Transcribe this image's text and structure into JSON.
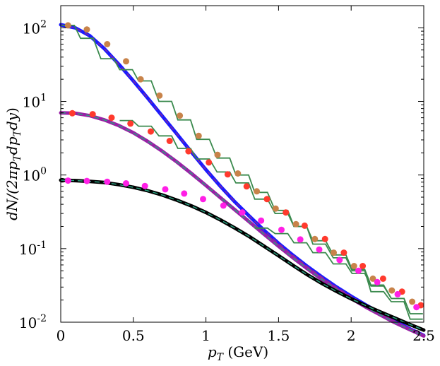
{
  "chart_data": {
    "type": "line",
    "title": "",
    "xlabel": {
      "symbol": "p",
      "sub": "T",
      "unit": " (GeV)"
    },
    "ylabel": {
      "parts": [
        {
          "t": "dN/(2π",
          "it": true
        },
        {
          "t": "p",
          "it": true
        },
        {
          "t": "T",
          "sub": true
        },
        {
          "t": "dp",
          "it": true
        },
        {
          "t": "T",
          "sub": true
        },
        {
          "t": "dy",
          "it": true
        },
        {
          "t": ")",
          "it": false
        }
      ]
    },
    "xlim": [
      0,
      2.5
    ],
    "ylim": [
      0.01,
      200
    ],
    "yscale": "log",
    "grid": false,
    "legend": "none",
    "x_ticks": [
      "0",
      "0.5",
      "1",
      "1.5",
      "2",
      "2.5"
    ],
    "x_tick_values": [
      0,
      0.5,
      1,
      1.5,
      2,
      2.5
    ],
    "y_ticks": [
      {
        "base": "10",
        "exp": "-2",
        "value": 0.01
      },
      {
        "base": "10",
        "exp": "-1",
        "value": 0.1
      },
      {
        "base": "10",
        "exp": "0",
        "value": 1
      },
      {
        "base": "10",
        "exp": "1",
        "value": 10
      },
      {
        "base": "10",
        "exp": "2",
        "value": 100
      }
    ],
    "series": [
      {
        "kind": "curve",
        "color": "#1a1aff",
        "dash_color": "#7f2aa0",
        "x": [
          0.0,
          0.1,
          0.2,
          0.3,
          0.4,
          0.5,
          0.6,
          0.7,
          0.8,
          0.9,
          1.0,
          1.1,
          1.2,
          1.3,
          1.4,
          1.5,
          1.6,
          1.7,
          1.8,
          1.9,
          2.0,
          2.1,
          2.2,
          2.3,
          2.4,
          2.5
        ],
        "y": [
          110,
          100,
          78,
          52,
          32,
          19,
          11,
          6.3,
          3.6,
          2.05,
          1.18,
          0.7,
          0.43,
          0.275,
          0.178,
          0.118,
          0.081,
          0.057,
          0.041,
          0.03,
          0.0225,
          0.0172,
          0.0133,
          0.0104,
          0.0082,
          0.0066
        ]
      },
      {
        "kind": "curve",
        "color": "#9a1fa6",
        "dash_color": "#2aa07f",
        "x": [
          0.0,
          0.1,
          0.2,
          0.3,
          0.4,
          0.5,
          0.6,
          0.7,
          0.8,
          0.9,
          1.0,
          1.1,
          1.2,
          1.3,
          1.4,
          1.5,
          1.6,
          1.7,
          1.8,
          1.9,
          2.0,
          2.1,
          2.2,
          2.3,
          2.4,
          2.5
        ],
        "y": [
          7.0,
          6.9,
          6.4,
          5.6,
          4.7,
          3.75,
          2.85,
          2.1,
          1.5,
          1.05,
          0.72,
          0.49,
          0.335,
          0.23,
          0.157,
          0.108,
          0.075,
          0.053,
          0.038,
          0.028,
          0.021,
          0.0161,
          0.0126,
          0.0099,
          0.008,
          0.0065
        ]
      },
      {
        "kind": "curve",
        "color": "#000000",
        "dash_color": "#2aa07f",
        "x": [
          0.0,
          0.1,
          0.2,
          0.3,
          0.4,
          0.5,
          0.6,
          0.7,
          0.8,
          0.9,
          1.0,
          1.1,
          1.2,
          1.3,
          1.4,
          1.5,
          1.6,
          1.7,
          1.8,
          1.9,
          2.0,
          2.1,
          2.2,
          2.3,
          2.4,
          2.5
        ],
        "y": [
          0.85,
          0.84,
          0.82,
          0.79,
          0.74,
          0.68,
          0.61,
          0.535,
          0.455,
          0.38,
          0.31,
          0.245,
          0.19,
          0.145,
          0.108,
          0.08,
          0.059,
          0.044,
          0.0335,
          0.0262,
          0.0208,
          0.0168,
          0.0138,
          0.0114,
          0.0094,
          0.0078
        ]
      },
      {
        "kind": "markers",
        "marker": "circle",
        "color": "#c8834a",
        "x": [
          0.05,
          0.18,
          0.32,
          0.45,
          0.55,
          0.68,
          0.82,
          0.95,
          1.08,
          1.22,
          1.35,
          1.48,
          1.62,
          1.75,
          1.88,
          2.02,
          2.15,
          2.28,
          2.42
        ],
        "y": [
          108,
          95,
          60,
          35,
          20,
          12,
          6.4,
          3.4,
          1.88,
          1.05,
          0.6,
          0.35,
          0.215,
          0.135,
          0.088,
          0.058,
          0.039,
          0.027,
          0.019
        ]
      },
      {
        "kind": "markers",
        "marker": "circle",
        "color": "#ff3a2d",
        "x": [
          0.08,
          0.22,
          0.35,
          0.48,
          0.62,
          0.75,
          0.88,
          1.02,
          1.15,
          1.28,
          1.42,
          1.55,
          1.68,
          1.82,
          1.95,
          2.08,
          2.22,
          2.35,
          2.48
        ],
        "y": [
          6.9,
          6.7,
          6.0,
          5.0,
          3.9,
          2.9,
          2.1,
          1.48,
          1.02,
          0.7,
          0.47,
          0.31,
          0.205,
          0.135,
          0.088,
          0.058,
          0.039,
          0.026,
          0.017
        ]
      },
      {
        "kind": "markers",
        "marker": "circle",
        "color": "#ff1fe6",
        "x": [
          0.05,
          0.18,
          0.32,
          0.45,
          0.58,
          0.72,
          0.85,
          0.98,
          1.12,
          1.25,
          1.38,
          1.52,
          1.65,
          1.78,
          1.92,
          2.05,
          2.18,
          2.32,
          2.45
        ],
        "y": [
          0.84,
          0.83,
          0.81,
          0.77,
          0.71,
          0.64,
          0.56,
          0.47,
          0.385,
          0.31,
          0.24,
          0.18,
          0.133,
          0.097,
          0.07,
          0.05,
          0.035,
          0.024,
          0.016
        ]
      },
      {
        "kind": "steps",
        "color": "#3b8a4e",
        "x": [
          0.05,
          0.18,
          0.32,
          0.45,
          0.58,
          0.72,
          0.85,
          0.98,
          1.12,
          1.25,
          1.38,
          1.52,
          1.65,
          1.78,
          1.92,
          2.05,
          2.18,
          2.32,
          2.45
        ],
        "y": [
          108,
          72,
          38,
          27,
          19,
          10,
          5.6,
          3.05,
          1.7,
          1.0,
          0.58,
          0.33,
          0.2,
          0.115,
          0.075,
          0.05,
          0.026,
          0.019,
          0.011
        ]
      },
      {
        "kind": "steps",
        "color": "#3b8a4e",
        "x": [
          0.45,
          0.58,
          0.72,
          0.85,
          0.98,
          1.12,
          1.25,
          1.38,
          1.52,
          1.65,
          1.78,
          1.92,
          2.05,
          2.18,
          2.32,
          2.45
        ],
        "y": [
          5.5,
          4.6,
          3.4,
          2.3,
          1.65,
          1.1,
          0.78,
          0.47,
          0.3,
          0.2,
          0.128,
          0.082,
          0.052,
          0.032,
          0.021,
          0.013
        ]
      },
      {
        "kind": "steps",
        "color": "#3b8a4e",
        "x": [
          1.38,
          1.52,
          1.65,
          1.78,
          1.92,
          2.05,
          2.18,
          2.32,
          2.45
        ],
        "y": [
          0.19,
          0.16,
          0.12,
          0.088,
          0.062,
          0.046,
          0.031,
          0.021,
          0.013
        ]
      }
    ]
  }
}
